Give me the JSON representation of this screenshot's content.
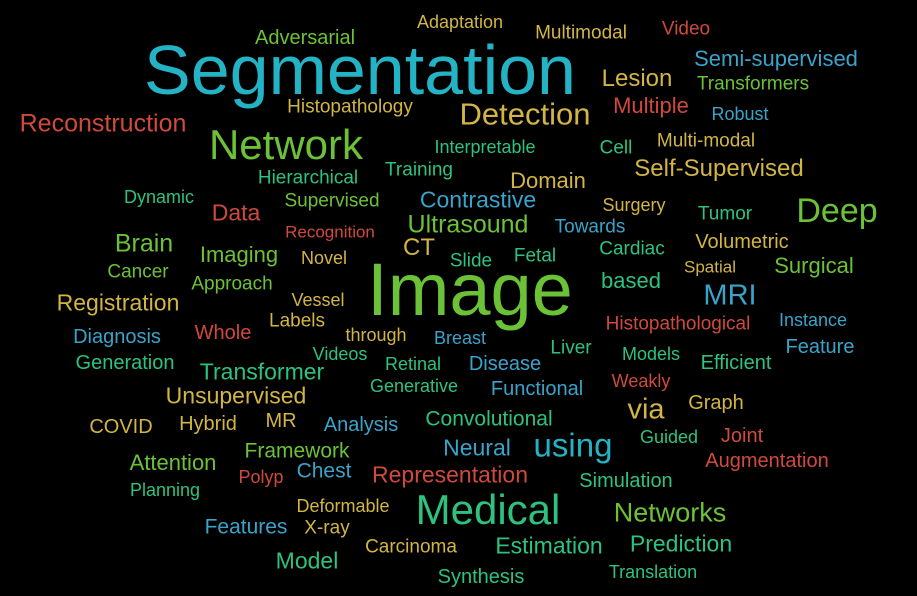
{
  "colors": {
    "background": "#000000",
    "blue": "#3aa3c9",
    "teal": "#24b3c4",
    "green": "#6cc236",
    "mint": "#2ec27e",
    "gold": "#d2b544",
    "red": "#cf4a3c"
  },
  "words": [
    "Segmentation",
    "Image",
    "Medical",
    "Network",
    "Deep",
    "Detection",
    "Adversarial",
    "Adaptation",
    "Multimodal",
    "Video",
    "Semi-supervised",
    "Lesion",
    "Transformers",
    "Histopathology",
    "Multiple",
    "Robust",
    "Reconstruction",
    "Interpretable",
    "Cell",
    "Multi-modal",
    "Training",
    "Self-Supervised",
    "Hierarchical",
    "Domain",
    "Dynamic",
    "Contrastive",
    "Supervised",
    "Surgery",
    "Tumor",
    "Data",
    "Ultrasound",
    "Towards",
    "Recognition",
    "Brain",
    "CT",
    "Imaging",
    "Novel",
    "Fetal",
    "Slide",
    "Cardiac",
    "Volumetric",
    "Cancer",
    "Spatial",
    "Surgical",
    "Approach",
    "based",
    "Registration",
    "Vessel",
    "MRI",
    "Labels",
    "Whole",
    "through",
    "Histopathological",
    "Diagnosis",
    "Breast",
    "Instance",
    "Videos",
    "Liver",
    "Feature",
    "Generation",
    "Retinal",
    "Disease",
    "Models",
    "Efficient",
    "Transformer",
    "Weakly",
    "Generative",
    "Functional",
    "Unsupervised",
    "via",
    "Graph",
    "MR",
    "Analysis",
    "Convolutional",
    "COVID",
    "Hybrid",
    "Neural",
    "using",
    "Guided",
    "Joint",
    "Framework",
    "Attention",
    "Chest",
    "Representation",
    "Polyp",
    "Augmentation",
    "Simulation",
    "Planning",
    "Deformable",
    "Networks",
    "Features",
    "X-ray",
    "Carcinoma",
    "Estimation",
    "Prediction",
    "Model",
    "Synthesis",
    "Translation"
  ]
}
